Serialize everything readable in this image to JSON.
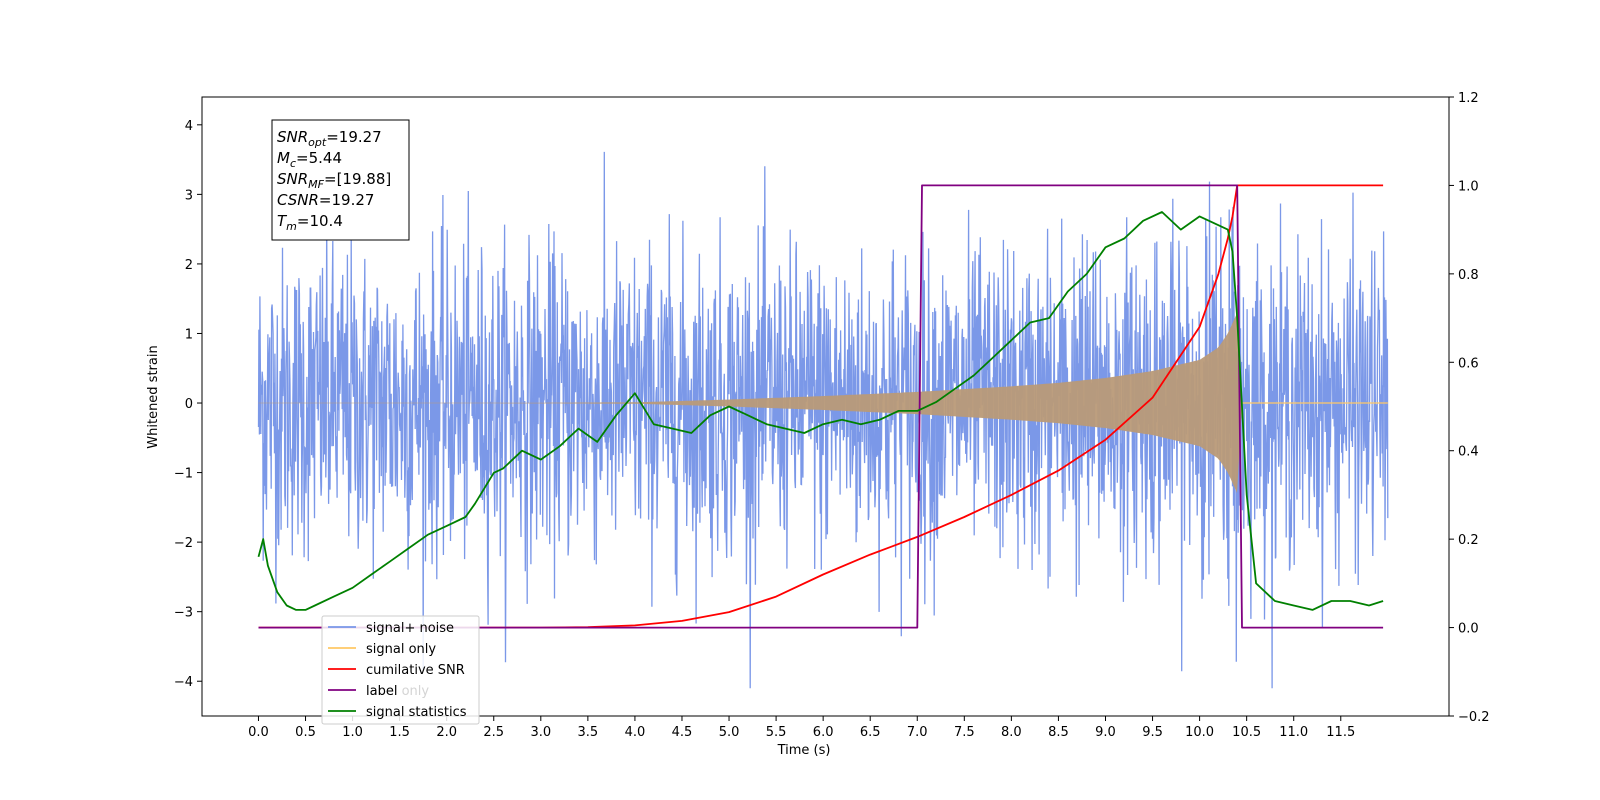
{
  "chart_data": {
    "type": "line",
    "xlabel": "Time (s)",
    "ylabel": "Whitened strain",
    "xlim": [
      -0.6,
      12.65
    ],
    "ylim": [
      -4.5,
      4.4
    ],
    "y2lim": [
      -0.2,
      1.2
    ],
    "x_ticks": [
      "0.0",
      "0.5",
      "1.0",
      "1.5",
      "2.0",
      "2.5",
      "3.0",
      "3.5",
      "4.0",
      "4.5",
      "5.0",
      "5.5",
      "6.0",
      "6.5",
      "7.0",
      "7.5",
      "8.0",
      "8.5",
      "9.0",
      "9.5",
      "10.0",
      "10.5",
      "11.0",
      "11.5"
    ],
    "y_ticks": [
      "4",
      "3",
      "2",
      "1",
      "0",
      "−1",
      "−2",
      "−3",
      "−4"
    ],
    "y2_ticks": [
      "1.2",
      "1.0",
      "0.8",
      "0.6",
      "0.4",
      "0.2",
      "0.0",
      "−0.2"
    ],
    "info_box": [
      {
        "base": "SNR",
        "sub": "opt",
        "value": "=19.27"
      },
      {
        "base": "M",
        "sub": "c",
        "value": "=5.44"
      },
      {
        "base": "SNR",
        "sub": "MF",
        "value": "=[19.88]"
      },
      {
        "base": "CSNR",
        "sub": "",
        "value": "=19.27"
      },
      {
        "base": "T",
        "sub": "m",
        "value": "=10.4"
      }
    ],
    "legend": {
      "location": "lower-left",
      "entries": [
        {
          "label": "signal+ noise",
          "color": "#7896e8"
        },
        {
          "label": "signal only",
          "color": "#ffc864"
        },
        {
          "label": "cumilative SNR",
          "color": "#ff0000"
        },
        {
          "label": "label",
          "color": "#800080"
        },
        {
          "label": "signal statistics",
          "color": "#008000"
        }
      ],
      "hidden_text": "label only"
    },
    "series": [
      {
        "name": "signal+ noise",
        "axis": "left",
        "color": "#7896e8",
        "description_range": [
          -4.1,
          4.0
        ],
        "x_range": [
          0.0,
          12.0
        ]
      },
      {
        "name": "signal only",
        "axis": "left",
        "color": "#ffc864",
        "envelope": {
          "x": [
            0,
            3.0,
            4.0,
            5.0,
            6.0,
            7.0,
            8.0,
            8.5,
            9.0,
            9.5,
            10.0,
            10.2,
            10.3,
            10.4,
            10.45
          ],
          "amp": [
            0.003,
            0.005,
            0.01,
            0.05,
            0.1,
            0.16,
            0.24,
            0.29,
            0.36,
            0.46,
            0.62,
            0.8,
            1.0,
            1.3,
            0.0
          ]
        }
      },
      {
        "name": "cumilative SNR",
        "axis": "right",
        "x": [
          0.0,
          3.0,
          3.5,
          4.0,
          4.5,
          5.0,
          5.5,
          6.0,
          6.5,
          7.0,
          7.5,
          8.0,
          8.5,
          9.0,
          9.5,
          10.0,
          10.2,
          10.3,
          10.35,
          10.4,
          10.45,
          11.95
        ],
        "y": [
          0.0,
          0.0,
          0.001,
          0.005,
          0.015,
          0.035,
          0.07,
          0.12,
          0.165,
          0.205,
          0.25,
          0.3,
          0.355,
          0.425,
          0.52,
          0.68,
          0.8,
          0.88,
          0.93,
          1.0,
          1.0,
          1.0
        ]
      },
      {
        "name": "label",
        "axis": "right",
        "x": [
          0.0,
          7.0,
          7.05,
          10.4,
          10.45,
          11.95
        ],
        "y": [
          0.0,
          0.0,
          1.0,
          1.0,
          0.0,
          0.0
        ]
      },
      {
        "name": "signal statistics",
        "axis": "right",
        "x": [
          0.0,
          0.05,
          0.1,
          0.2,
          0.3,
          0.4,
          0.5,
          0.6,
          0.8,
          1.0,
          1.2,
          1.4,
          1.6,
          1.8,
          2.0,
          2.2,
          2.3,
          2.5,
          2.6,
          2.8,
          3.0,
          3.2,
          3.4,
          3.6,
          3.8,
          4.0,
          4.2,
          4.4,
          4.6,
          4.8,
          5.0,
          5.2,
          5.4,
          5.6,
          5.8,
          6.0,
          6.2,
          6.4,
          6.6,
          6.8,
          7.0,
          7.2,
          7.4,
          7.6,
          7.8,
          8.0,
          8.2,
          8.4,
          8.6,
          8.8,
          9.0,
          9.2,
          9.4,
          9.6,
          9.8,
          10.0,
          10.2,
          10.3,
          10.35,
          10.4,
          10.45,
          10.5,
          10.6,
          10.8,
          11.0,
          11.2,
          11.4,
          11.6,
          11.8,
          11.95
        ],
        "y": [
          0.16,
          0.2,
          0.14,
          0.08,
          0.05,
          0.04,
          0.04,
          0.05,
          0.07,
          0.09,
          0.12,
          0.15,
          0.18,
          0.21,
          0.23,
          0.25,
          0.28,
          0.35,
          0.36,
          0.4,
          0.38,
          0.41,
          0.45,
          0.42,
          0.48,
          0.53,
          0.46,
          0.45,
          0.44,
          0.48,
          0.5,
          0.48,
          0.46,
          0.45,
          0.44,
          0.46,
          0.47,
          0.46,
          0.47,
          0.49,
          0.49,
          0.51,
          0.54,
          0.57,
          0.61,
          0.65,
          0.69,
          0.7,
          0.76,
          0.8,
          0.86,
          0.88,
          0.92,
          0.94,
          0.9,
          0.93,
          0.91,
          0.9,
          0.85,
          0.7,
          0.5,
          0.3,
          0.1,
          0.06,
          0.05,
          0.04,
          0.06,
          0.06,
          0.05,
          0.06
        ]
      }
    ]
  }
}
